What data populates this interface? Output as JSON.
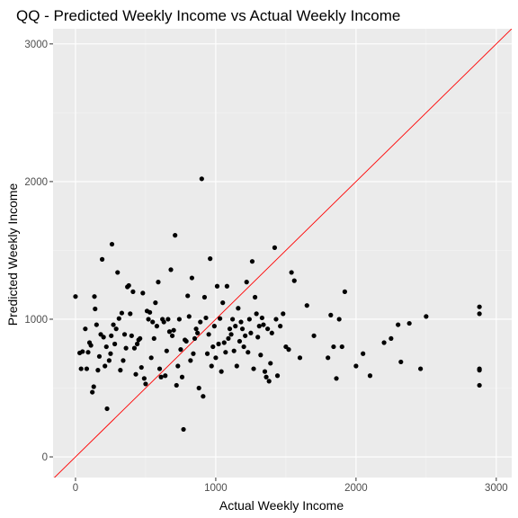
{
  "colors": {
    "panel_background": "#ebebeb",
    "grid_major": "#ffffff",
    "grid_minor": "#f5f5f5",
    "points": "#000000",
    "reference_line": "#ff0000",
    "tick": "#333333"
  },
  "chart_data": {
    "type": "scatter",
    "title": "QQ - Predicted Weekly Income vs Actual Weekly Income",
    "xlabel": "Actual Weekly Income",
    "ylabel": "Predicted Weekly Income",
    "xlim": [
      -160,
      3110
    ],
    "ylim": [
      -150,
      3110
    ],
    "x_ticks": [
      0,
      1000,
      2000,
      3000
    ],
    "x_tick_labels": [
      "0",
      "1000",
      "2000",
      "3000"
    ],
    "y_ticks": [
      0,
      1000,
      2000,
      3000
    ],
    "y_tick_labels": [
      "0",
      "1000",
      "2000",
      "3000"
    ],
    "grid": true,
    "reference_line": {
      "slope": 1,
      "intercept": 0
    },
    "points": [
      [
        0,
        1165
      ],
      [
        30,
        755
      ],
      [
        40,
        640
      ],
      [
        50,
        765
      ],
      [
        70,
        930
      ],
      [
        80,
        640
      ],
      [
        90,
        760
      ],
      [
        100,
        830
      ],
      [
        110,
        810
      ],
      [
        120,
        470
      ],
      [
        130,
        510
      ],
      [
        135,
        1165
      ],
      [
        140,
        1075
      ],
      [
        150,
        960
      ],
      [
        160,
        630
      ],
      [
        170,
        730
      ],
      [
        180,
        890
      ],
      [
        190,
        1435
      ],
      [
        200,
        870
      ],
      [
        210,
        660
      ],
      [
        220,
        800
      ],
      [
        225,
        350
      ],
      [
        240,
        700
      ],
      [
        250,
        750
      ],
      [
        255,
        880
      ],
      [
        260,
        1545
      ],
      [
        270,
        960
      ],
      [
        280,
        820
      ],
      [
        290,
        930
      ],
      [
        300,
        1340
      ],
      [
        310,
        1005
      ],
      [
        320,
        630
      ],
      [
        330,
        1045
      ],
      [
        340,
        700
      ],
      [
        350,
        890
      ],
      [
        360,
        790
      ],
      [
        370,
        1235
      ],
      [
        380,
        1245
      ],
      [
        390,
        1040
      ],
      [
        400,
        880
      ],
      [
        410,
        1200
      ],
      [
        420,
        790
      ],
      [
        430,
        600
      ],
      [
        440,
        820
      ],
      [
        450,
        850
      ],
      [
        460,
        860
      ],
      [
        470,
        650
      ],
      [
        480,
        1190
      ],
      [
        490,
        570
      ],
      [
        500,
        530
      ],
      [
        510,
        1060
      ],
      [
        520,
        1000
      ],
      [
        530,
        1050
      ],
      [
        540,
        720
      ],
      [
        550,
        980
      ],
      [
        560,
        860
      ],
      [
        570,
        1120
      ],
      [
        580,
        950
      ],
      [
        590,
        1270
      ],
      [
        600,
        640
      ],
      [
        610,
        580
      ],
      [
        620,
        1000
      ],
      [
        630,
        980
      ],
      [
        640,
        590
      ],
      [
        650,
        770
      ],
      [
        660,
        1000
      ],
      [
        670,
        910
      ],
      [
        680,
        1360
      ],
      [
        690,
        880
      ],
      [
        700,
        920
      ],
      [
        710,
        1610
      ],
      [
        720,
        520
      ],
      [
        730,
        660
      ],
      [
        740,
        1000
      ],
      [
        750,
        780
      ],
      [
        760,
        580
      ],
      [
        770,
        200
      ],
      [
        780,
        850
      ],
      [
        790,
        840
      ],
      [
        800,
        1170
      ],
      [
        810,
        1020
      ],
      [
        820,
        700
      ],
      [
        830,
        1300
      ],
      [
        840,
        750
      ],
      [
        850,
        860
      ],
      [
        860,
        930
      ],
      [
        870,
        900
      ],
      [
        880,
        500
      ],
      [
        890,
        980
      ],
      [
        900,
        2020
      ],
      [
        910,
        440
      ],
      [
        920,
        1160
      ],
      [
        930,
        1010
      ],
      [
        940,
        750
      ],
      [
        950,
        890
      ],
      [
        960,
        1440
      ],
      [
        970,
        660
      ],
      [
        980,
        800
      ],
      [
        990,
        950
      ],
      [
        1000,
        720
      ],
      [
        1010,
        1240
      ],
      [
        1020,
        820
      ],
      [
        1030,
        1005
      ],
      [
        1040,
        620
      ],
      [
        1050,
        1120
      ],
      [
        1060,
        830
      ],
      [
        1070,
        760
      ],
      [
        1080,
        1240
      ],
      [
        1090,
        860
      ],
      [
        1100,
        930
      ],
      [
        1110,
        890
      ],
      [
        1120,
        1000
      ],
      [
        1130,
        770
      ],
      [
        1140,
        950
      ],
      [
        1150,
        660
      ],
      [
        1160,
        1080
      ],
      [
        1170,
        840
      ],
      [
        1180,
        980
      ],
      [
        1190,
        930
      ],
      [
        1200,
        800
      ],
      [
        1210,
        880
      ],
      [
        1220,
        1270
      ],
      [
        1230,
        760
      ],
      [
        1240,
        1000
      ],
      [
        1250,
        900
      ],
      [
        1260,
        1420
      ],
      [
        1270,
        640
      ],
      [
        1280,
        1160
      ],
      [
        1290,
        1040
      ],
      [
        1300,
        870
      ],
      [
        1310,
        950
      ],
      [
        1320,
        740
      ],
      [
        1330,
        1010
      ],
      [
        1340,
        960
      ],
      [
        1350,
        620
      ],
      [
        1360,
        580
      ],
      [
        1370,
        930
      ],
      [
        1380,
        550
      ],
      [
        1390,
        680
      ],
      [
        1400,
        900
      ],
      [
        1420,
        1520
      ],
      [
        1430,
        1000
      ],
      [
        1440,
        590
      ],
      [
        1460,
        950
      ],
      [
        1480,
        1040
      ],
      [
        1500,
        800
      ],
      [
        1520,
        780
      ],
      [
        1540,
        1340
      ],
      [
        1560,
        1280
      ],
      [
        1600,
        720
      ],
      [
        1650,
        1100
      ],
      [
        1700,
        880
      ],
      [
        1800,
        720
      ],
      [
        1820,
        1030
      ],
      [
        1840,
        800
      ],
      [
        1860,
        570
      ],
      [
        1880,
        1000
      ],
      [
        1900,
        800
      ],
      [
        1920,
        1200
      ],
      [
        2000,
        660
      ],
      [
        2050,
        750
      ],
      [
        2100,
        590
      ],
      [
        2200,
        830
      ],
      [
        2250,
        860
      ],
      [
        2300,
        960
      ],
      [
        2320,
        690
      ],
      [
        2380,
        970
      ],
      [
        2460,
        640
      ],
      [
        2500,
        1020
      ],
      [
        2880,
        1090
      ],
      [
        2880,
        1040
      ],
      [
        2880,
        640
      ],
      [
        2880,
        630
      ],
      [
        2880,
        520
      ]
    ]
  }
}
